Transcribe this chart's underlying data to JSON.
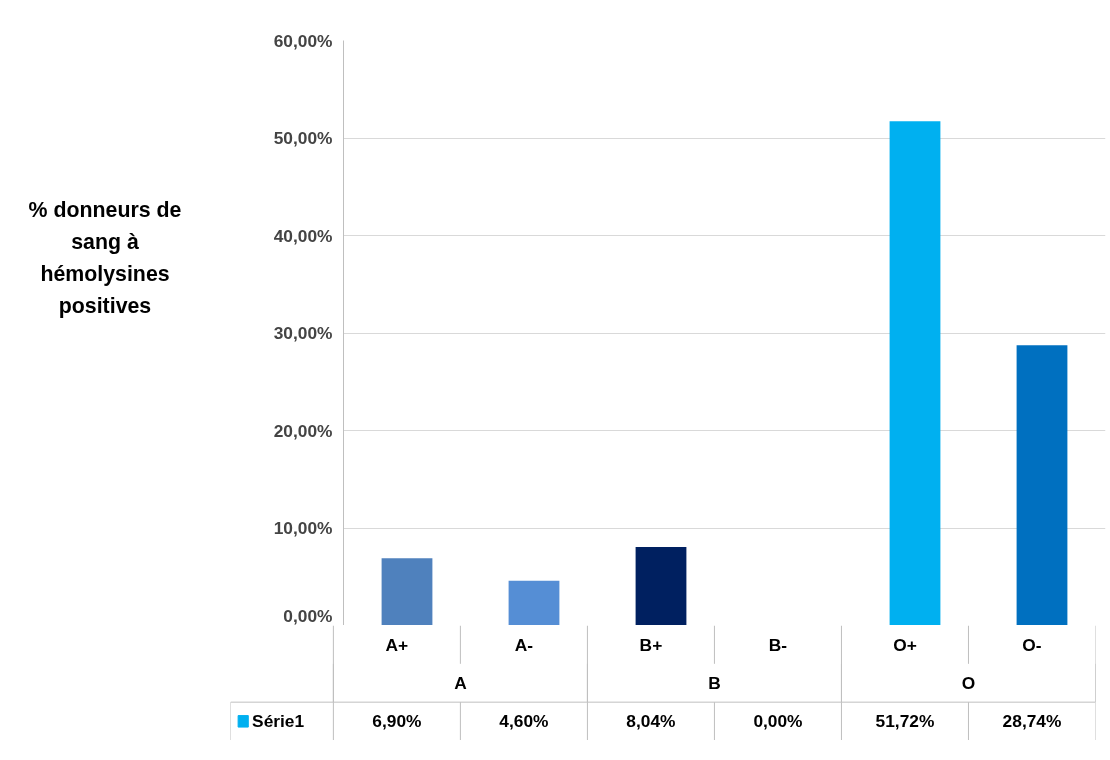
{
  "chart_data": {
    "type": "bar",
    "ylabel": "% donneurs de sang à hémolysines positives",
    "categories": [
      "A+",
      "A-",
      "B+",
      "B-",
      "O+",
      "O-"
    ],
    "annotations": [
      "A",
      "B",
      "O"
    ],
    "series": [
      {
        "name": "Série1",
        "color": "#00b0f0",
        "colors": [
          "#4f81bd",
          "#558ed5",
          "#002060",
          "#002060",
          "#00b0f0",
          "#0070c0"
        ],
        "values": [
          6.9,
          4.6,
          8.04,
          0.0,
          51.72,
          28.74
        ],
        "value_labels": [
          "6,90%",
          "4,60%",
          "8,04%",
          "0,00%",
          "51,72%",
          "28,74%"
        ]
      }
    ],
    "ylim": [
      0,
      60
    ],
    "yticks": [
      {
        "value": 0,
        "label": "0,00%"
      },
      {
        "value": 10,
        "label": "10,00%"
      },
      {
        "value": 20,
        "label": "20,00%"
      },
      {
        "value": 30,
        "label": "30,00%"
      },
      {
        "value": 40,
        "label": "40,00%"
      },
      {
        "value": 50,
        "label": "50,00%"
      },
      {
        "value": 60,
        "label": "60,00%"
      }
    ],
    "grid": "y",
    "legend": "bottom"
  }
}
